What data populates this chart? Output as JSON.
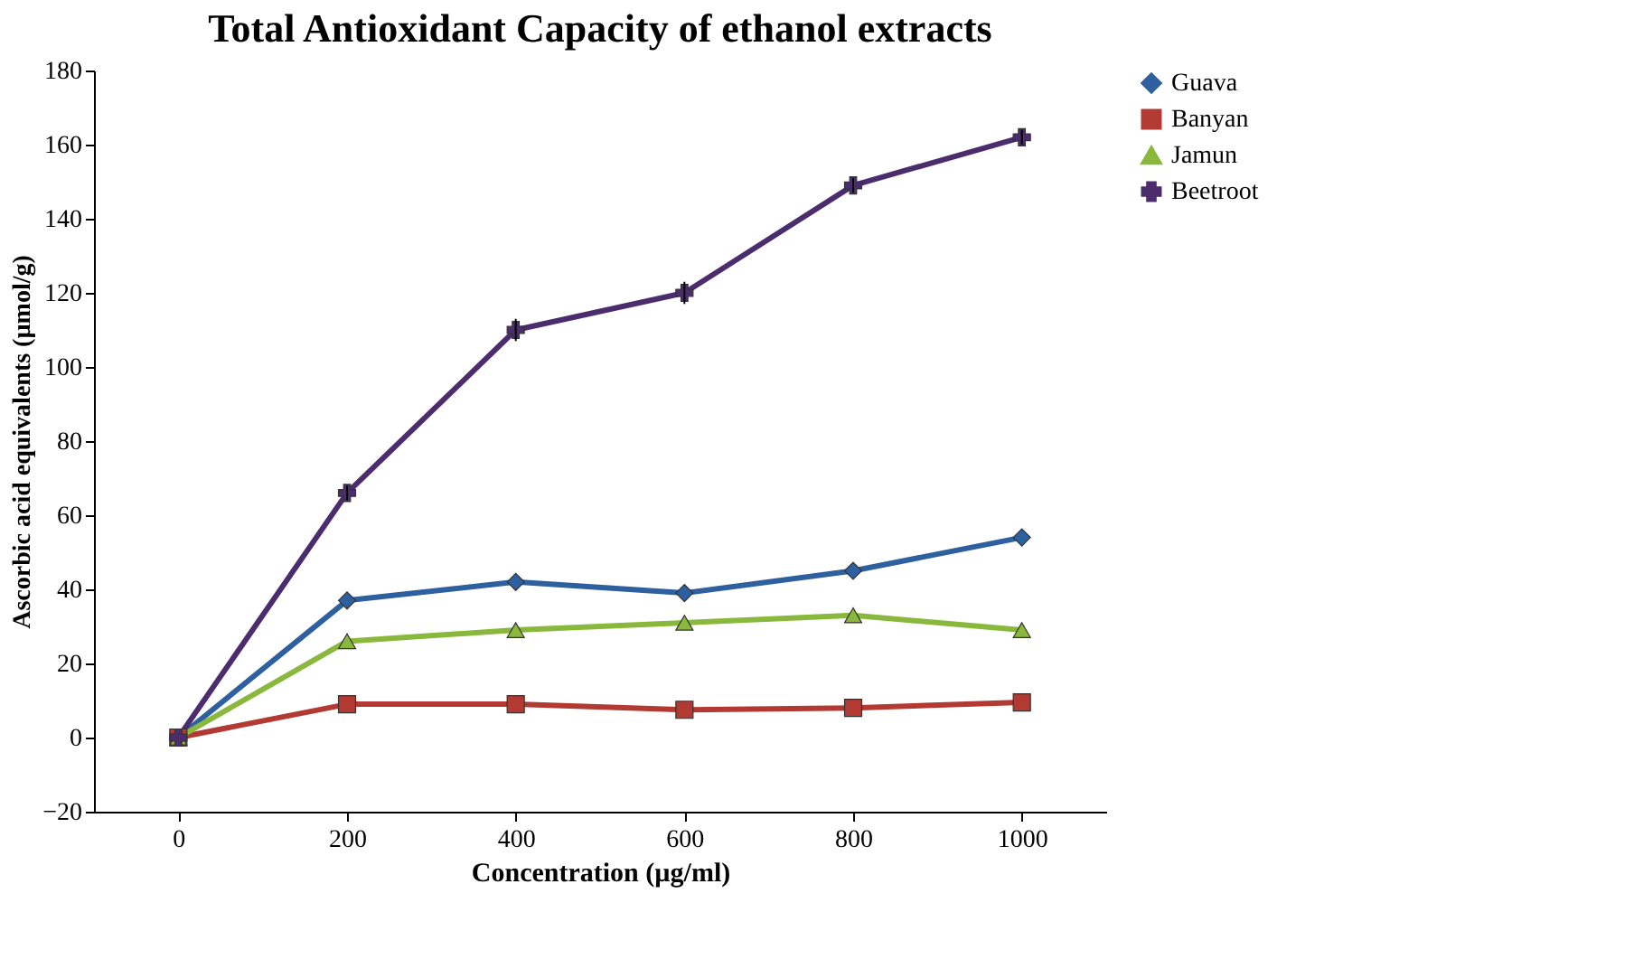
{
  "chart_data": {
    "type": "line",
    "title": "Total Antioxidant  Capacity of ethanol extracts",
    "xlabel": "Concentration (µg/ml)",
    "ylabel": "Ascorbic acid equivalents (µmol/g)",
    "categories": [
      "0",
      "200",
      "400",
      "600",
      "800",
      "1000"
    ],
    "series": [
      {
        "name": "Guava",
        "color": "#2e5f9e",
        "marker": "diamond",
        "values": [
          0,
          37,
          42,
          39,
          45,
          54
        ]
      },
      {
        "name": "Banyan",
        "color": "#b23a33",
        "marker": "square",
        "values": [
          0,
          9,
          9,
          7.5,
          8,
          9.5
        ]
      },
      {
        "name": "Jamun",
        "color": "#8ab83c",
        "marker": "triangle",
        "values": [
          0,
          26,
          29,
          31,
          33,
          29
        ]
      },
      {
        "name": "Beetroot",
        "color": "#4b2d6e",
        "marker": "cross",
        "values": [
          0,
          66,
          110,
          120,
          149,
          162
        ],
        "errors": [
          null,
          2,
          3,
          3,
          2,
          2
        ]
      }
    ],
    "ylim": [
      -20,
      180
    ],
    "yticks": [
      -20,
      0,
      20,
      40,
      60,
      80,
      100,
      120,
      140,
      160,
      180
    ],
    "grid": false,
    "legend": "right",
    "line_style": "solid"
  }
}
